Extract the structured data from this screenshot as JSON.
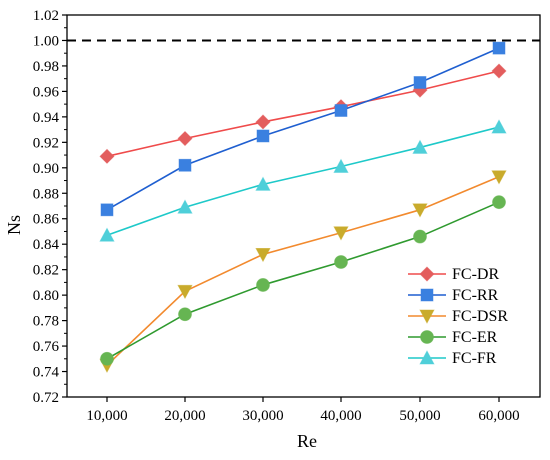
{
  "chart_data": {
    "type": "line",
    "xlabel": "Re",
    "ylabel": "Ns",
    "x": [
      10000,
      20000,
      30000,
      40000,
      50000,
      60000
    ],
    "x_tick_labels": [
      "10,000",
      "20,000",
      "30,000",
      "40,000",
      "50,000",
      "60,000"
    ],
    "ylim": [
      0.72,
      1.02
    ],
    "y_ticks": [
      0.72,
      0.74,
      0.76,
      0.78,
      0.8,
      0.82,
      0.84,
      0.86,
      0.88,
      0.9,
      0.92,
      0.94,
      0.96,
      0.98,
      1.0,
      1.02
    ],
    "y_tick_labels": [
      "0.72",
      "0.74",
      "0.76",
      "0.78",
      "0.80",
      "0.82",
      "0.84",
      "0.86",
      "0.88",
      "0.90",
      "0.92",
      "0.94",
      "0.96",
      "0.98",
      "1.00",
      "1.02"
    ],
    "reference_line": {
      "y": 1.0,
      "style": "dashed",
      "color": "#000000"
    },
    "legend_position": "bottom-right",
    "grid": false,
    "series": [
      {
        "name": "FC-DR",
        "values": [
          0.909,
          0.923,
          0.936,
          0.948,
          0.961,
          0.976
        ],
        "line_color": "#ef4b4b",
        "marker": "diamond",
        "marker_color": "#e35d5d"
      },
      {
        "name": "FC-RR",
        "values": [
          0.867,
          0.902,
          0.925,
          0.945,
          0.967,
          0.994
        ],
        "line_color": "#1f5fd0",
        "marker": "square",
        "marker_color": "#3a80e0"
      },
      {
        "name": "FC-DSR",
        "values": [
          0.745,
          0.803,
          0.832,
          0.849,
          0.867,
          0.893
        ],
        "line_color": "#f28a2e",
        "marker": "triangle-down",
        "marker_color": "#c9ab2c"
      },
      {
        "name": "FC-ER",
        "values": [
          0.75,
          0.785,
          0.808,
          0.826,
          0.846,
          0.873
        ],
        "line_color": "#2f9a2f",
        "marker": "circle",
        "marker_color": "#66b552"
      },
      {
        "name": "FC-FR",
        "values": [
          0.847,
          0.869,
          0.887,
          0.901,
          0.916,
          0.932
        ],
        "line_color": "#1ec9c9",
        "marker": "triangle-up",
        "marker_color": "#4fcfd9"
      }
    ]
  }
}
